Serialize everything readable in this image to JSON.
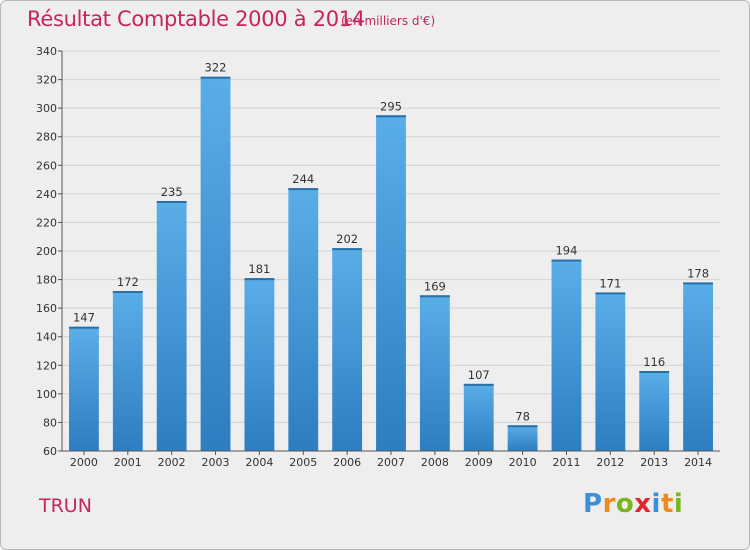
{
  "header": {
    "title": "Résultat Comptable 2000 à 2014",
    "subtitle": "(en milliers d'€)"
  },
  "footer": {
    "commune": "TRUN",
    "brand": [
      "P",
      "r",
      "o",
      "x",
      "i",
      "t",
      "i"
    ]
  },
  "colors": {
    "title": "#c5245f",
    "bar_top": "#5aaee8",
    "bar_bottom": "#2d7dc0",
    "brand_letters": [
      "#3a8fd6",
      "#f08a1c",
      "#7ab51d",
      "#e3262d",
      "#3a8fd6",
      "#f08a1c",
      "#7ab51d"
    ]
  },
  "chart_data": {
    "type": "bar",
    "title": "Résultat Comptable 2000 à 2014",
    "subtitle": "(en milliers d'€)",
    "xlabel": "",
    "ylabel": "",
    "categories": [
      "2000",
      "2001",
      "2002",
      "2003",
      "2004",
      "2005",
      "2006",
      "2007",
      "2008",
      "2009",
      "2010",
      "2011",
      "2012",
      "2013",
      "2014"
    ],
    "values": [
      147,
      172,
      235,
      322,
      181,
      244,
      202,
      295,
      169,
      107,
      78,
      194,
      171,
      116,
      178
    ],
    "ylim": [
      60,
      340
    ],
    "yticks": [
      60,
      80,
      100,
      120,
      140,
      160,
      180,
      200,
      220,
      240,
      260,
      280,
      300,
      320,
      340
    ],
    "grid": true,
    "legend": "none"
  }
}
